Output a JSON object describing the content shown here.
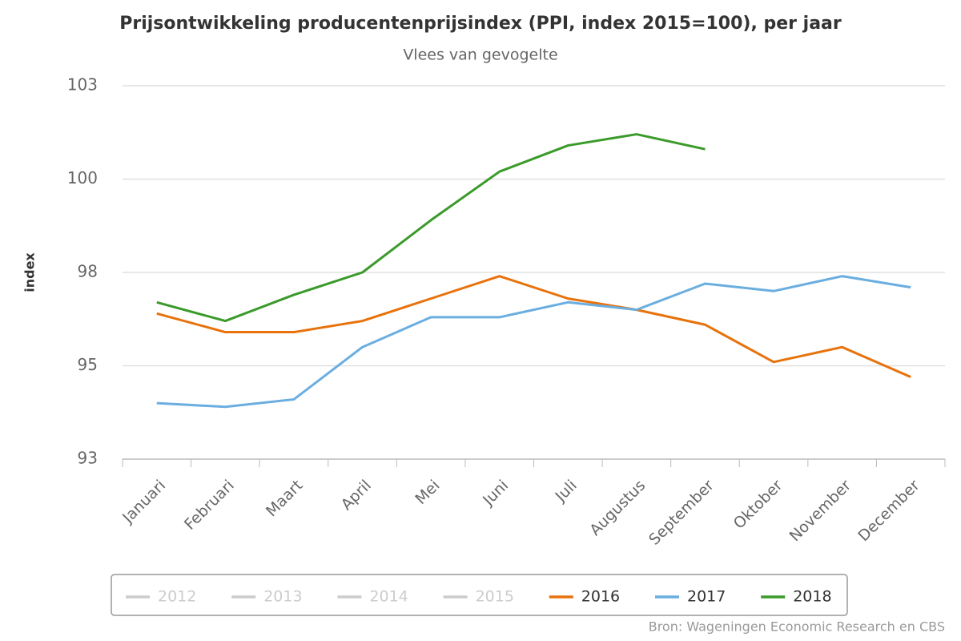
{
  "chart_data": {
    "type": "line",
    "title": "Prijsontwikkeling producentenprijsindex (PPI, index 2015=100), per jaar",
    "subtitle": "Vlees van gevogelte",
    "y_label": "index",
    "source": "Bron: Wageningen Economic Research en CBS",
    "categories": [
      "Januari",
      "Februari",
      "Maart",
      "April",
      "Mei",
      "Juni",
      "Juli",
      "Augustus",
      "September",
      "Oktober",
      "November",
      "December"
    ],
    "ylim": [
      92.5,
      102.5
    ],
    "yticks": [
      {
        "value": 92.5,
        "label": "93"
      },
      95,
      {
        "value": 97.5,
        "label": "98"
      },
      100,
      {
        "value": 102.5,
        "label": "103"
      }
    ],
    "grid": true,
    "legend": "bottom",
    "series": [
      {
        "name": "2012",
        "color": "#cccccc",
        "visible": false,
        "values": [
          null,
          null,
          null,
          null,
          null,
          null,
          null,
          null,
          null,
          null,
          null,
          null
        ]
      },
      {
        "name": "2013",
        "color": "#cccccc",
        "visible": false,
        "values": [
          null,
          null,
          null,
          null,
          null,
          null,
          null,
          null,
          null,
          null,
          null,
          null
        ]
      },
      {
        "name": "2014",
        "color": "#cccccc",
        "visible": false,
        "values": [
          null,
          null,
          null,
          null,
          null,
          null,
          null,
          null,
          null,
          null,
          null,
          null
        ]
      },
      {
        "name": "2015",
        "color": "#cccccc",
        "visible": false,
        "values": [
          null,
          null,
          null,
          null,
          null,
          null,
          null,
          null,
          null,
          null,
          null,
          null
        ]
      },
      {
        "name": "2016",
        "color": "#e8720c",
        "visible": true,
        "values": [
          96.4,
          95.9,
          95.9,
          96.2,
          96.8,
          97.4,
          96.8,
          96.5,
          96.1,
          95.1,
          95.5,
          94.7
        ]
      },
      {
        "name": "2017",
        "color": "#6aaee0",
        "visible": true,
        "values": [
          94.0,
          93.9,
          94.1,
          95.5,
          96.3,
          96.3,
          96.7,
          96.5,
          97.2,
          97.0,
          97.4,
          97.1
        ]
      },
      {
        "name": "2018",
        "color": "#3a9a2a",
        "visible": true,
        "values": [
          96.7,
          96.2,
          96.9,
          97.5,
          98.9,
          100.2,
          100.9,
          101.2,
          100.8,
          null,
          null,
          null
        ]
      }
    ]
  }
}
